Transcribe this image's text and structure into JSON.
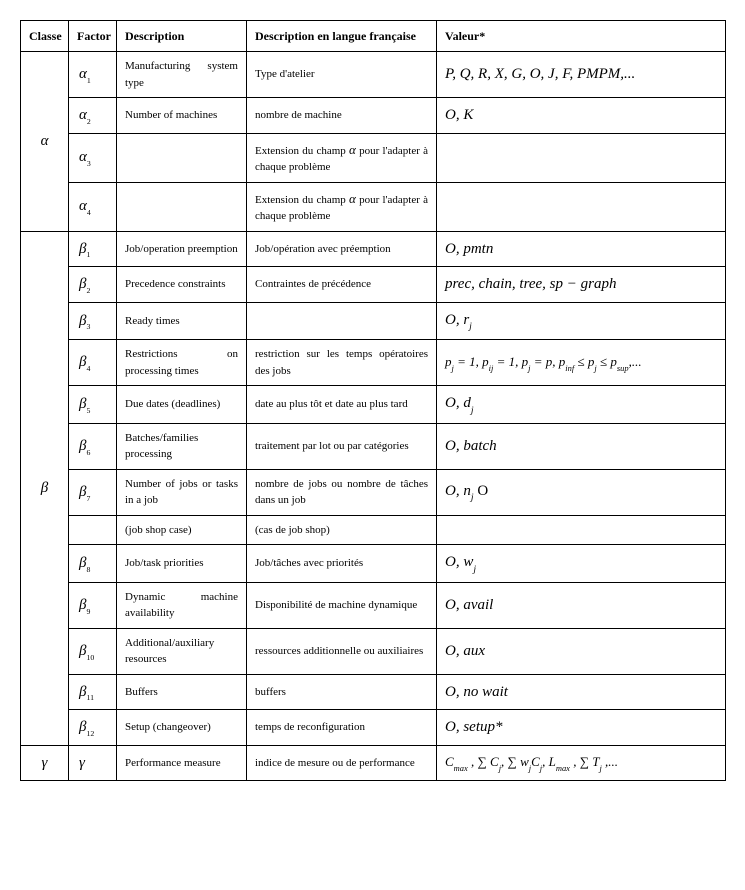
{
  "headers": {
    "classe": "Classe",
    "factor": "Factor",
    "description": "Description",
    "description_fr": "Description en langue française",
    "valeur": "Valeur*"
  },
  "groups": [
    {
      "classe": "α",
      "rows": [
        {
          "factor": "α",
          "factor_sub": "1",
          "desc": "Manufacturing system type",
          "desc_fr": "Type d'atelier",
          "valeur": "P, Q, R, X, G, O, J, F,  PMPM,..."
        },
        {
          "factor": "α",
          "factor_sub": "2",
          "desc": "Number of machines",
          "desc_fr": "nombre de machine",
          "valeur": "O, K"
        },
        {
          "factor": "α",
          "factor_sub": "3",
          "desc": "",
          "desc_fr": "Extension du champ α pour l'adapter à chaque problème",
          "valeur": ""
        },
        {
          "factor": "α",
          "factor_sub": "4",
          "desc": "",
          "desc_fr": "Extension du champ α pour l'adapter à chaque problème",
          "valeur": ""
        }
      ]
    },
    {
      "classe": "β",
      "rows": [
        {
          "factor": "β",
          "factor_sub": "1",
          "desc": "Job/operation preemption",
          "desc_fr": "Job/opération avec préemption",
          "valeur": "O, pmtn"
        },
        {
          "factor": "β",
          "factor_sub": "2",
          "desc": "Precedence constraints",
          "desc_fr": "Contraintes de précédence",
          "valeur": "prec, chain, tree, sp − graph"
        },
        {
          "factor": "β",
          "factor_sub": "3",
          "desc": "Ready times",
          "desc_fr": "",
          "valeur_html": "O, r<span class='sub'>j</span>"
        },
        {
          "factor": "β",
          "factor_sub": "4",
          "desc": "Restrictions on processing times",
          "desc_fr": "restriction sur les temps opératoires des jobs",
          "valeur_html": "p<span class='sub'>j</span> = 1, p<span class='sub'>ij</span> = 1, p<span class='sub'>j</span> = p, p<span class='sub'>inf</span> ≤ p<span class='sub'>j</span> ≤ p<span class='sub'>sup</span>,...",
          "val_class": "val-sm"
        },
        {
          "factor": "β",
          "factor_sub": "5",
          "desc": "Due dates (deadlines)",
          "desc_fr": "date au plus tôt et date au plus tard",
          "valeur_html": "O, d<span class='sub'>j</span>"
        },
        {
          "factor": "β",
          "factor_sub": "6",
          "desc": "Batches/families processing",
          "desc_fr": "traitement par  lot ou par catégories",
          "valeur": "O, batch"
        },
        {
          "factor": "β",
          "factor_sub": "7",
          "desc": "Number of jobs or tasks in a job",
          "desc_fr": "nombre de jobs ou nombre de tâches dans un job",
          "valeur_html": "O, n<span class='sub'>j</span> <span style='font-style:normal'>O</span>"
        },
        {
          "factor": "",
          "factor_sub": "",
          "desc": "(job shop case)",
          "desc_fr": "(cas de job shop)",
          "valeur": ""
        },
        {
          "factor": "β",
          "factor_sub": "8",
          "desc": "Job/task priorities",
          "desc_fr": "Job/tâches avec priorités",
          "valeur_html": "O, w<span class='sub'>j</span>"
        },
        {
          "factor": "β",
          "factor_sub": "9",
          "desc": "Dynamic machine availability",
          "desc_fr": "Disponibilité de machine dynamique",
          "valeur": "O, avail"
        },
        {
          "factor": "β",
          "factor_sub": "10",
          "desc": "Additional/auxiliary resources",
          "desc_fr": "ressources additionnelle ou auxiliaires",
          "valeur": "O, aux"
        },
        {
          "factor": "β",
          "factor_sub": "11",
          "desc": "Buffers",
          "desc_fr": "buffers",
          "valeur": "O, no wait"
        },
        {
          "factor": "β",
          "factor_sub": "12",
          "desc": "Setup (changeover)",
          "desc_fr": "temps de reconfiguration",
          "valeur": "O, setup*"
        }
      ]
    },
    {
      "classe": "γ",
      "rows": [
        {
          "factor": "γ",
          "factor_sub": "",
          "desc": "Performance measure",
          "desc_fr": "indice de mesure ou de performance",
          "valeur_html": "C<span class='sub'>max</span> , ∑ C<span class='sub'>j</span>, ∑ w<span class='sub'>j</span>C<span class='sub'>j</span>,  L<span class='sub'>max</span> , ∑ T<span class='sub'>j</span> ,...",
          "val_class": "val-sm"
        }
      ]
    }
  ]
}
